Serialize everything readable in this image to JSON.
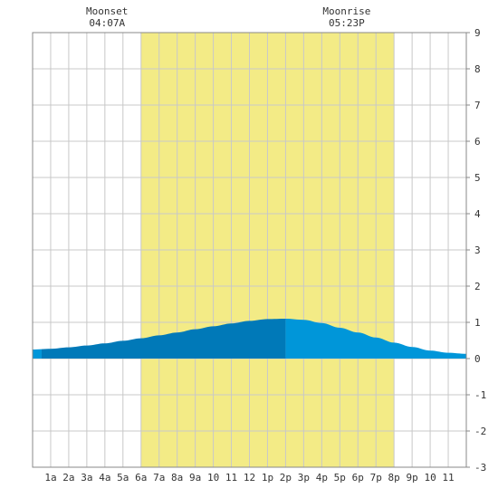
{
  "chart_data": {
    "type": "area",
    "title": "",
    "xlabel": "",
    "ylabel": "",
    "x_tick_labels": [
      "1a",
      "2a",
      "3a",
      "4a",
      "5a",
      "6a",
      "7a",
      "8a",
      "9a",
      "10",
      "11",
      "12",
      "1p",
      "2p",
      "3p",
      "4p",
      "5p",
      "6p",
      "7p",
      "8p",
      "9p",
      "10",
      "11"
    ],
    "x_range_hours": [
      0,
      24
    ],
    "ylim": [
      -3,
      9
    ],
    "y_ticks": [
      -3,
      -2,
      -1,
      0,
      1,
      2,
      3,
      4,
      5,
      6,
      7,
      8,
      9
    ],
    "y_axis_side": "right",
    "grid": true,
    "daylight_shading": {
      "start_hour": 6,
      "end_hour": 20
    },
    "annotations": [
      {
        "label": "Moonset",
        "time": "04:07A",
        "hour": 4.12
      },
      {
        "label": "Moonrise",
        "time": "05:23P",
        "hour": 17.38
      }
    ],
    "tide_extreme": {
      "type": "high",
      "hour": 14,
      "value": 1.1
    },
    "series": [
      {
        "x": [
          0,
          1,
          2,
          3,
          4,
          5,
          6,
          7,
          8,
          9,
          10,
          11,
          12,
          13,
          14,
          15,
          16,
          17,
          18,
          19,
          20,
          21,
          22,
          23,
          24
        ],
        "values": [
          0.25,
          0.27,
          0.31,
          0.36,
          0.42,
          0.49,
          0.56,
          0.64,
          0.72,
          0.81,
          0.89,
          0.97,
          1.04,
          1.09,
          1.1,
          1.07,
          0.98,
          0.85,
          0.72,
          0.58,
          0.44,
          0.32,
          0.22,
          0.16,
          0.13
        ]
      }
    ],
    "colors": {
      "daylight": "#f3eb86",
      "water_before_high": "#0079b8",
      "water_after_high": "#0096d9",
      "water_first_hour": "#0096d9",
      "grid": "#c8c8c8",
      "border": "#888888"
    }
  }
}
